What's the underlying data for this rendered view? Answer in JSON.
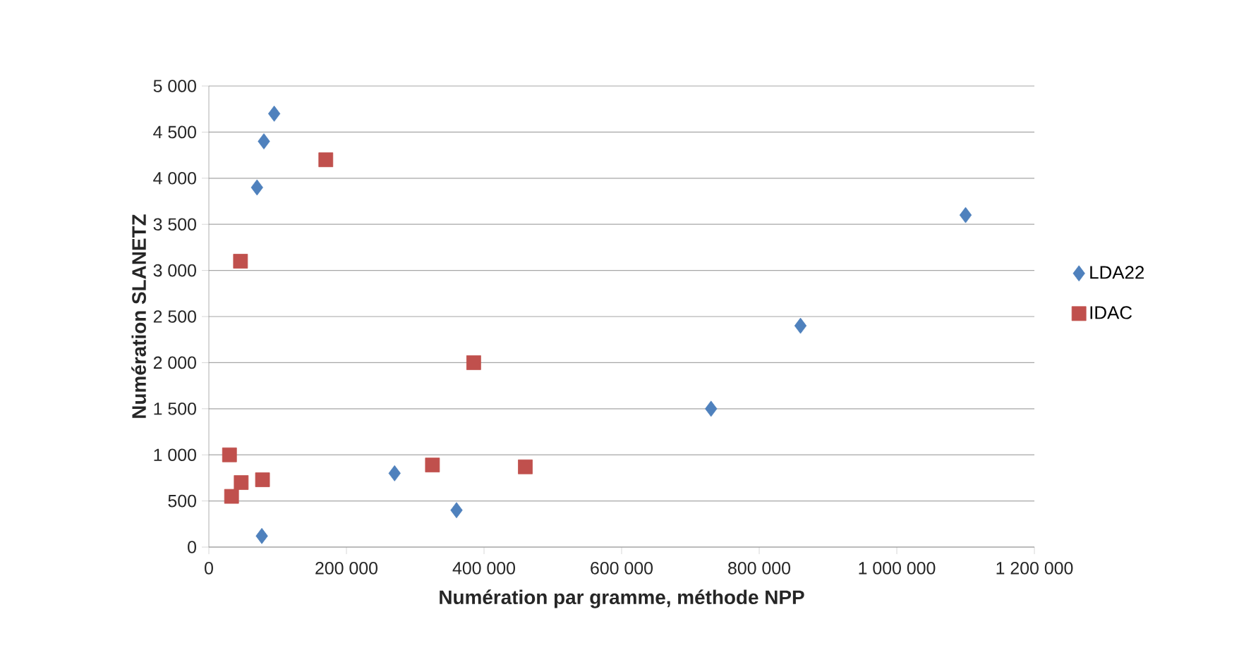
{
  "chart_data": {
    "type": "scatter",
    "xlabel": "Numération par gramme, méthode NPP",
    "ylabel": "Numération SLANETZ",
    "series": [
      {
        "name": "LDA22",
        "color": "#4f81bd",
        "marker": "diamond",
        "x": [
          95000,
          80000,
          70000,
          77000,
          270000,
          360000,
          730000,
          860000,
          1100000
        ],
        "values": [
          4700,
          4400,
          3900,
          120,
          800,
          400,
          1500,
          2400,
          3600
        ]
      },
      {
        "name": "IDAC",
        "color": "#c0504d",
        "marker": "square",
        "x": [
          170000,
          46000,
          385000,
          30000,
          33000,
          47000,
          78000,
          325000,
          460000
        ],
        "values": [
          4200,
          3100,
          2000,
          1000,
          550,
          700,
          730,
          890,
          870
        ]
      }
    ],
    "xlim": [
      0,
      1200000
    ],
    "xticks": [
      0,
      {
        "value": 200000,
        "label": "200 000"
      },
      {
        "value": 400000,
        "label": "400 000"
      },
      {
        "value": 600000,
        "label": "600 000"
      },
      {
        "value": 800000,
        "label": "800 000"
      },
      {
        "value": 1000000,
        "label": "1 000 000"
      },
      {
        "value": 1200000,
        "label": "1 200 000"
      }
    ],
    "ylim": [
      0,
      5000
    ],
    "yticks": [
      0,
      500,
      {
        "value": 1000,
        "label": "1 000"
      },
      {
        "value": 1500,
        "label": "1 500"
      },
      {
        "value": 2000,
        "label": "2 000"
      },
      {
        "value": 2500,
        "label": "2 500"
      },
      {
        "value": 3000,
        "label": "3 000"
      },
      {
        "value": 3500,
        "label": "3 500"
      },
      {
        "value": 4000,
        "label": "4 000"
      },
      {
        "value": 4500,
        "label": "4 500"
      },
      {
        "value": 5000,
        "label": "5 000"
      }
    ],
    "grid": "y",
    "legend": "right"
  }
}
